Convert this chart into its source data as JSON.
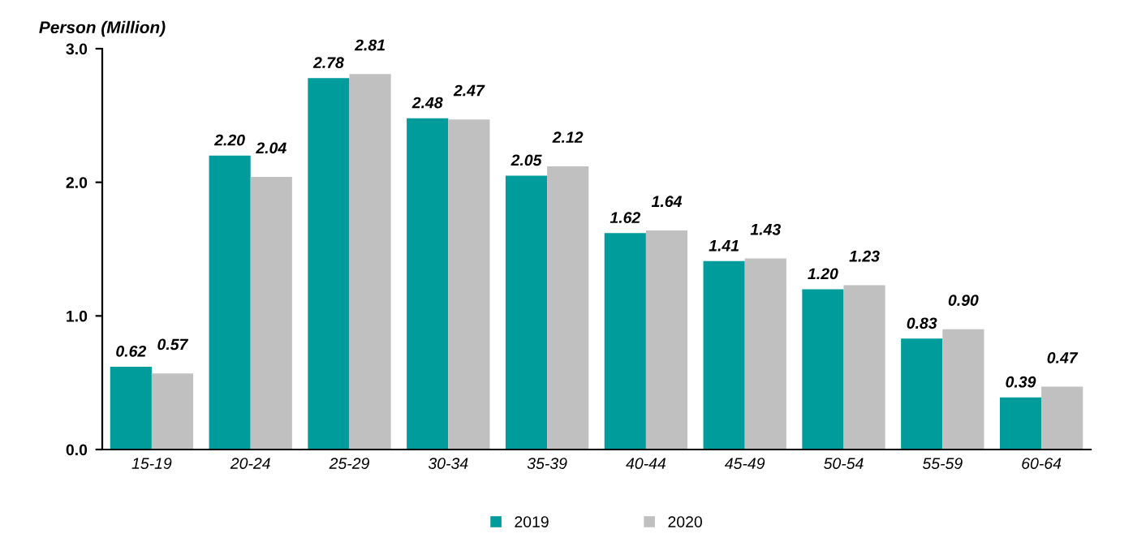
{
  "chart_data": {
    "type": "bar",
    "ylabel": "Person (Million)",
    "categories": [
      "15-19",
      "20-24",
      "25-29",
      "30-34",
      "35-39",
      "40-44",
      "45-49",
      "50-54",
      "55-59",
      "60-64"
    ],
    "series": [
      {
        "name": "2019",
        "color": "#009b9b",
        "values": [
          0.62,
          2.2,
          2.78,
          2.48,
          2.05,
          1.62,
          1.41,
          1.2,
          0.83,
          0.39
        ],
        "value_labels": [
          "0.62",
          "2.20",
          "2.78",
          "2.48",
          "2.05",
          "1.62",
          "1.41",
          "1.20",
          "0.83",
          "0.39"
        ]
      },
      {
        "name": "2020",
        "color": "#c0c0c0",
        "values": [
          0.57,
          2.04,
          2.81,
          2.47,
          2.12,
          1.64,
          1.43,
          1.23,
          0.9,
          0.47
        ],
        "value_labels": [
          "0.57",
          "2.04",
          "2.81",
          "2.47",
          "2.12",
          "1.64",
          "1.43",
          "1.23",
          "0.90",
          "0.47"
        ]
      }
    ],
    "ylim": [
      0,
      3.0
    ],
    "yticks": [
      {
        "value": 0,
        "label": "0.0"
      },
      {
        "value": 1,
        "label": "1.0"
      },
      {
        "value": 2,
        "label": "2.0"
      },
      {
        "value": 3,
        "label": "3.0"
      }
    ],
    "grid": false,
    "legend": "bottom"
  }
}
